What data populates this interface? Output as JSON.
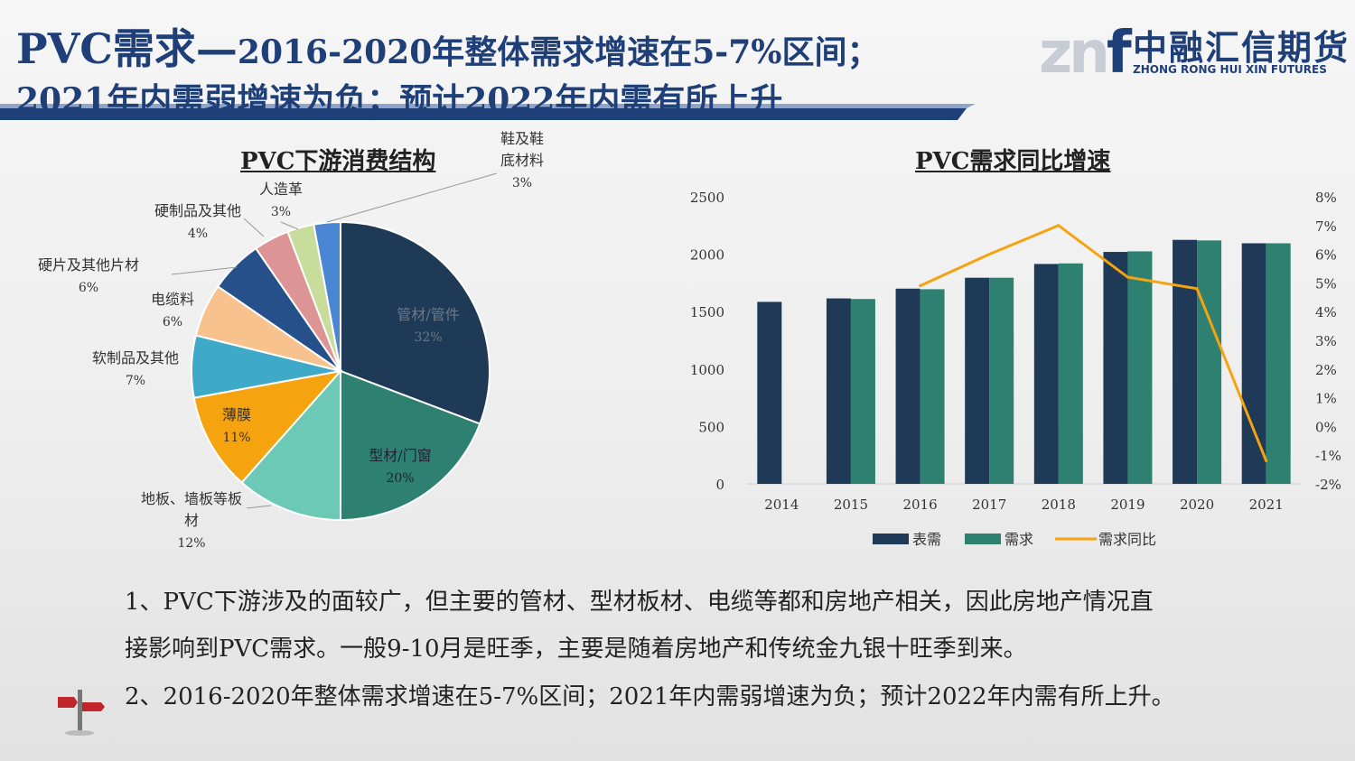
{
  "title": {
    "line1_main": "PVC需求—",
    "line1_rest": "2016-2020年整体需求增速在5-7%区间；",
    "line2": "2021年内需弱增速为负；预计2022年内需有所上升"
  },
  "logo": {
    "cn": "中融汇信期货",
    "en": "ZHONG RONG HUI XIN FUTURES",
    "mark": "znf"
  },
  "colors": {
    "title": "#1f3f78",
    "navy": "#1f3a56",
    "teal": "#2e8071",
    "orange": "#f5a30f"
  },
  "chart_data": [
    {
      "type": "pie",
      "title": "PVC下游消费结构",
      "slices": [
        {
          "label": "管材/管件",
          "value": 32,
          "pct": "32%",
          "color": "#1f3a56"
        },
        {
          "label": "型材/门窗",
          "value": 20,
          "pct": "20%",
          "color": "#2e8071"
        },
        {
          "label": "地板、墙板等板材",
          "value": 12,
          "pct": "12%",
          "color": "#6bc9b5"
        },
        {
          "label": "薄膜",
          "value": 11,
          "pct": "11%",
          "color": "#f5a30f"
        },
        {
          "label": "软制品及其他",
          "value": 7,
          "pct": "7%",
          "color": "#3eaac7"
        },
        {
          "label": "电缆料",
          "value": 6,
          "pct": "6%",
          "color": "#f8c28f"
        },
        {
          "label": "硬片及其他片材",
          "value": 6,
          "pct": "6%",
          "color": "#25508a"
        },
        {
          "label": "硬制品及其他",
          "value": 4,
          "pct": "4%",
          "color": "#dc9494"
        },
        {
          "label": "人造革",
          "value": 3,
          "pct": "3%",
          "color": "#c8dc9c"
        },
        {
          "label": "鞋及鞋底材料",
          "value": 3,
          "pct": "3%",
          "color": "#4a86d4"
        }
      ]
    },
    {
      "type": "bar+line",
      "title": "PVC需求同比增速",
      "categories": [
        "2014",
        "2015",
        "2016",
        "2017",
        "2018",
        "2019",
        "2020",
        "2021"
      ],
      "series": [
        {
          "name": "表需",
          "type": "bar",
          "axis": "left",
          "color": "#1f3a56",
          "values": [
            1585,
            1615,
            1700,
            1795,
            1915,
            2020,
            2125,
            2095
          ]
        },
        {
          "name": "需求",
          "type": "bar",
          "axis": "left",
          "color": "#2e8071",
          "values": [
            null,
            1610,
            1695,
            1795,
            1920,
            2025,
            2120,
            2095
          ]
        },
        {
          "name": "需求同比",
          "type": "line",
          "axis": "right",
          "color": "#f5a30f",
          "values": [
            null,
            null,
            4.9,
            6.0,
            7.0,
            5.2,
            4.8,
            -1.2
          ]
        }
      ],
      "yleft": {
        "min": 0,
        "max": 2500,
        "ticks": [
          "0",
          "500",
          "1000",
          "1500",
          "2000",
          "2500"
        ]
      },
      "yright": {
        "min": -2,
        "max": 8,
        "ticks": [
          "-2%",
          "-1%",
          "0%",
          "1%",
          "2%",
          "3%",
          "4%",
          "5%",
          "6%",
          "7%",
          "8%"
        ]
      }
    }
  ],
  "paragraphs": {
    "p1": "1、PVC下游涉及的面较广，但主要的管材、型材板材、电缆等都和房地产相关，因此房地产情况直",
    "p2": "接影响到PVC需求。一般9-10月是旺季，主要是随着房地产和传统金九银十旺季到来。",
    "p3": "2、2016-2020年整体需求增速在5-7%区间；2021年内需弱增速为负；预计2022年内需有所上升。"
  }
}
